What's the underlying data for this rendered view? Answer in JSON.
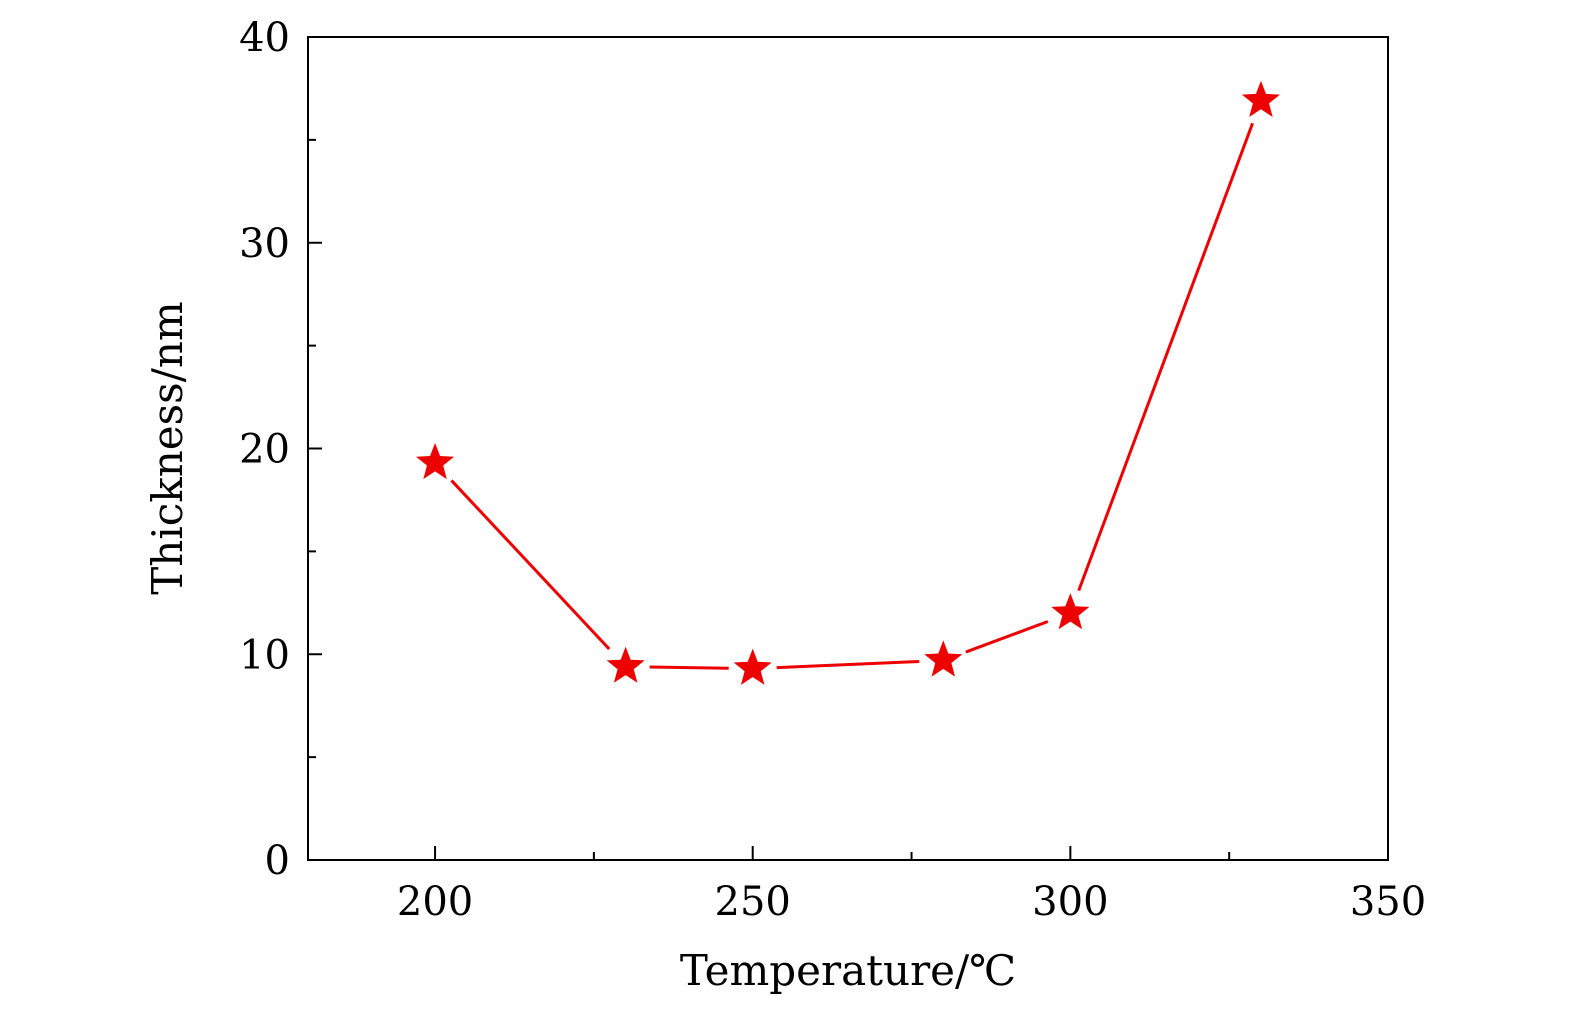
{
  "chart_data": {
    "type": "line",
    "title": "",
    "xlabel": "Temperature/℃",
    "ylabel": "Thickness/nm",
    "xlim": [
      180,
      350
    ],
    "ylim": [
      0,
      40
    ],
    "x_ticks": [
      200,
      250,
      300,
      350
    ],
    "y_ticks": [
      0,
      10,
      20,
      30,
      40
    ],
    "x_tick_labels": [
      "200",
      "250",
      "300",
      "350"
    ],
    "y_tick_labels": [
      "0",
      "10",
      "20",
      "30",
      "40"
    ],
    "x_minor_step": 25,
    "y_minor_step": 5,
    "grid": false,
    "legend": "none",
    "marker": "star",
    "series": [
      {
        "color": "#ee0000",
        "x": [
          200,
          230,
          250,
          280,
          300,
          330
        ],
        "y": [
          19.3,
          9.4,
          9.3,
          9.7,
          12.0,
          36.9
        ]
      }
    ]
  }
}
